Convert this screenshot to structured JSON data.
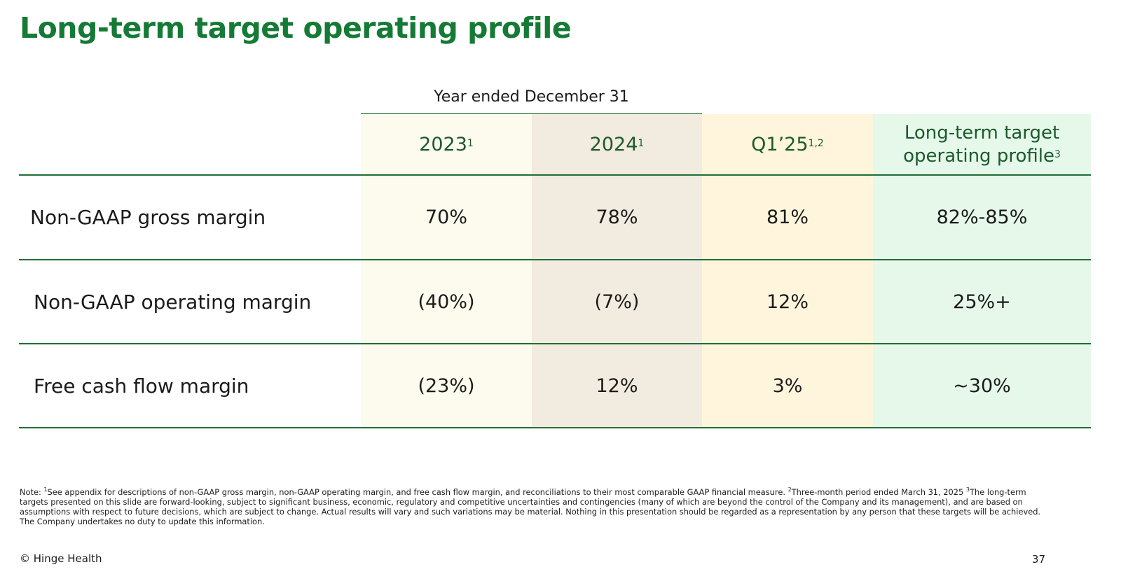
{
  "title": "Long-term target operating profile",
  "year_header": "Year ended December 31",
  "columns": [
    {
      "label": "2023",
      "sup": "1"
    },
    {
      "label": "2024",
      "sup": "1"
    },
    {
      "label": "Q1’25",
      "sup": "1,2"
    },
    {
      "label_line1": "Long-term target",
      "label_line2": "operating profile",
      "sup": "3"
    }
  ],
  "rows": [
    {
      "label": "Non-GAAP gross margin",
      "values": [
        "70%",
        "78%",
        "81%",
        "82%-85%"
      ]
    },
    {
      "label": "Non-GAAP operating margin",
      "values": [
        "(40%)",
        "(7%)",
        "12%",
        "25%+"
      ]
    },
    {
      "label": "Free cash flow margin",
      "values": [
        "(23%)",
        "12%",
        "3%",
        "~30%"
      ]
    }
  ],
  "colors": {
    "title_green": "#157a35",
    "rule_green": "#1f6e35",
    "col_2023": "#fdfaee",
    "col_2024": "#f2ebe0",
    "col_q1": "#fff5dc",
    "col_target": "#e5f8ea"
  },
  "note": {
    "prefix": "Note: ",
    "sup1": "1",
    "text1": "See appendix for descriptions of non-GAAP gross margin, non-GAAP operating margin, and free cash flow margin, and reconciliations to their most comparable GAAP financial measure. ",
    "sup2": "2",
    "text2": "Three-month period ended March 31, 2025 ",
    "sup3": "3",
    "text3": "The long-term targets presented on this slide are forward-looking, subject to significant business, economic, regulatory and competitive uncertainties and contingencies (many of which are beyond the control of the Company and its management), and are based on assumptions with respect to future decisions, which are subject to change. Actual results will vary and such variations may be material. Nothing in this presentation should be regarded as a representation by any person that these targets will be achieved. The Company undertakes no duty to update this information."
  },
  "footer": {
    "company": "© Hinge Health",
    "page_number": "37"
  }
}
